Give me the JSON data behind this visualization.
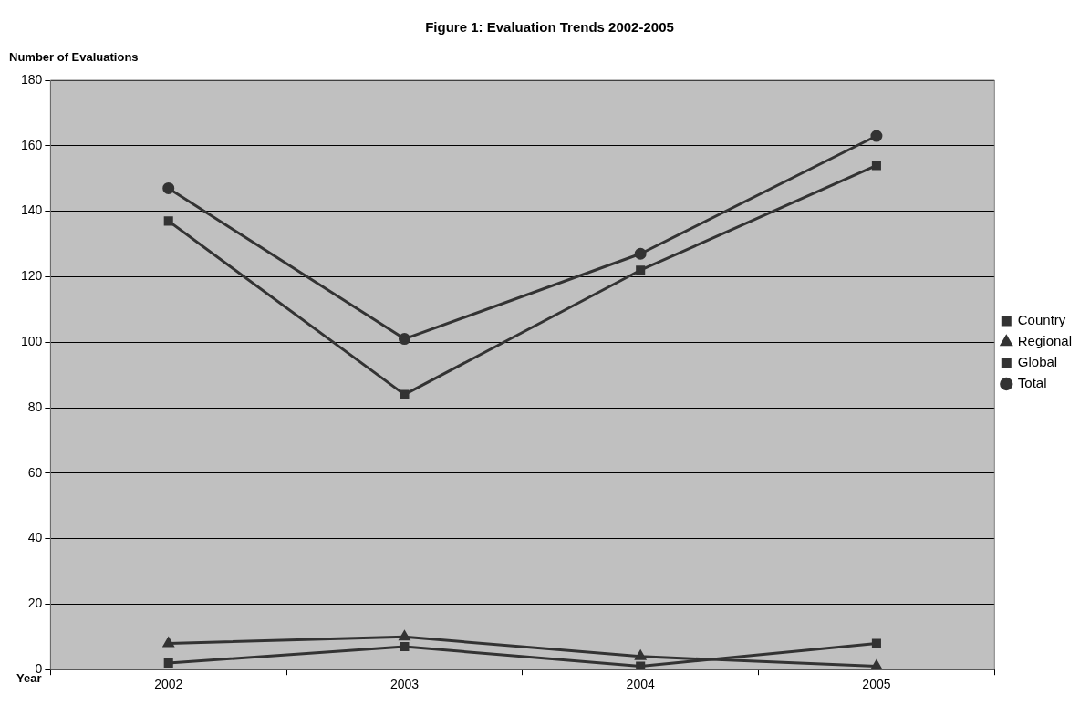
{
  "chart_data": {
    "type": "line",
    "title": "Figure 1: Evaluation Trends 2002-2005",
    "xlabel": "Year",
    "ylabel": "Number of Evaluations",
    "categories": [
      "2002",
      "2003",
      "2004",
      "2005"
    ],
    "series": [
      {
        "name": "Country",
        "color": "#333333",
        "marker": "square",
        "values": [
          137,
          84,
          122,
          154
        ]
      },
      {
        "name": "Regional",
        "color": "#333333",
        "marker": "triangle",
        "values": [
          8,
          10,
          4,
          1
        ]
      },
      {
        "name": "Global",
        "color": "#333333",
        "marker": "square",
        "values": [
          2,
          7,
          1,
          8
        ]
      },
      {
        "name": "Total",
        "color": "#333333",
        "marker": "circle",
        "values": [
          147,
          101,
          127,
          163
        ]
      }
    ],
    "ylim": [
      0,
      180
    ],
    "yticks": [
      0,
      20,
      40,
      60,
      80,
      100,
      120,
      140,
      160,
      180
    ],
    "grid": "y",
    "legend": "right",
    "line_style": "solid"
  }
}
